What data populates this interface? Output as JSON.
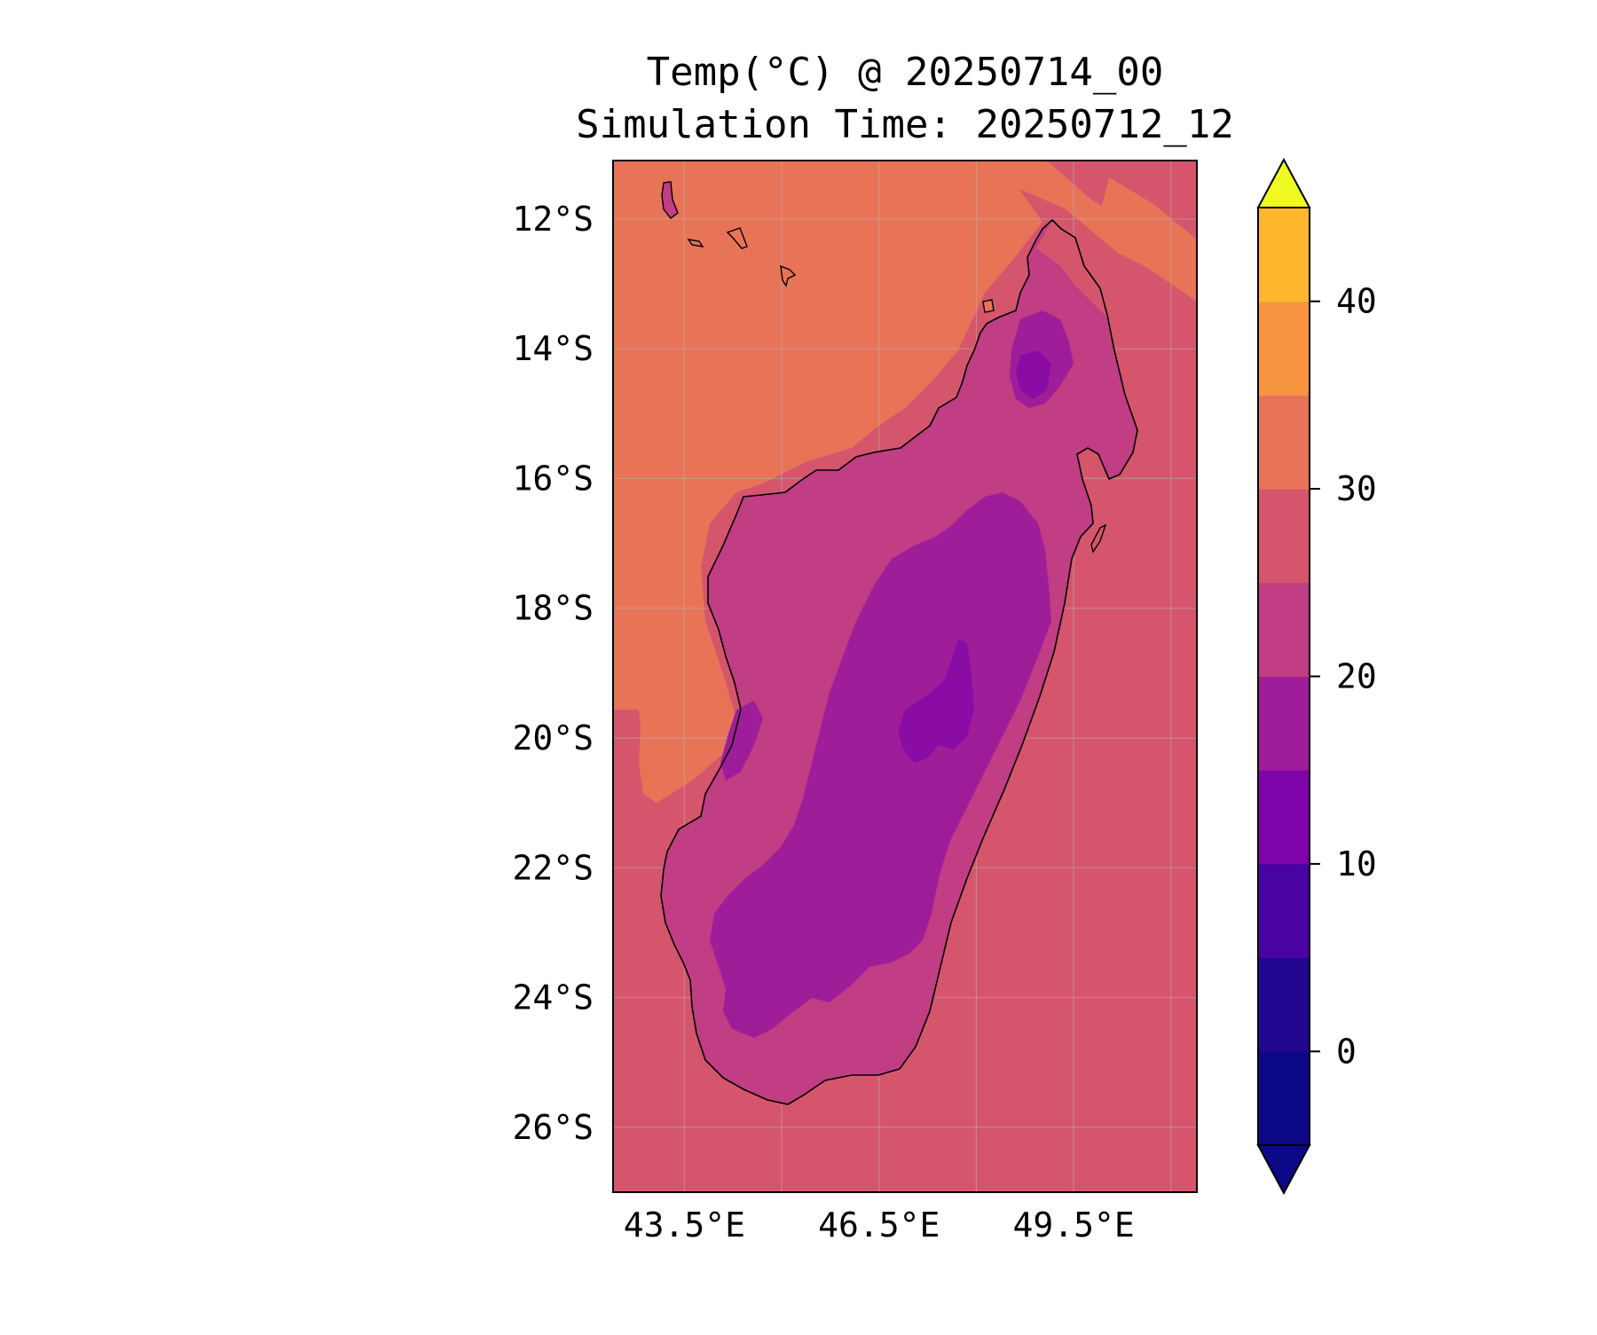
{
  "title": {
    "line1": "Temp(°C) @ 20250714_00",
    "line2": "Simulation Time: 20250712_12"
  },
  "map": {
    "region": "Madagascar",
    "lon_range": [
      42.4,
      51.4
    ],
    "lat_range": [
      -27.0,
      -11.1
    ],
    "x_ticks": [
      {
        "value": 43.5,
        "label": "43.5°E"
      },
      {
        "value": 46.5,
        "label": "46.5°E"
      },
      {
        "value": 49.5,
        "label": "49.5°E"
      }
    ],
    "y_ticks": [
      {
        "value": -12,
        "label": "12°S"
      },
      {
        "value": -14,
        "label": "14°S"
      },
      {
        "value": -16,
        "label": "16°S"
      },
      {
        "value": -18,
        "label": "18°S"
      },
      {
        "value": -20,
        "label": "20°S"
      },
      {
        "value": -22,
        "label": "22°S"
      },
      {
        "value": -24,
        "label": "24°S"
      },
      {
        "value": -26,
        "label": "26°S"
      }
    ],
    "grid": true,
    "colors": {
      "ocean_warm": "#e87458",
      "ocean_mild": "#d5566c",
      "land_low": "#c13d84",
      "land_mid": "#a01d9a",
      "land_high": "#8a0ca5",
      "coastline": "#000000"
    }
  },
  "colorbar": {
    "colormap": "plasma",
    "extend": "both",
    "levels": [
      -5,
      0,
      5,
      10,
      15,
      20,
      25,
      30,
      35,
      40,
      45
    ],
    "colors": [
      "#0d0887",
      "#220690",
      "#4903a0",
      "#7e03a8",
      "#a01d9a",
      "#c13d84",
      "#d5566c",
      "#e87458",
      "#f89540",
      "#feb72c",
      "#f1e226"
    ],
    "under_color": "#0d0887",
    "over_color": "#f0f921",
    "ticks": [
      {
        "value": 0,
        "label": "0"
      },
      {
        "value": 10,
        "label": "10"
      },
      {
        "value": 20,
        "label": "20"
      },
      {
        "value": 30,
        "label": "30"
      },
      {
        "value": 40,
        "label": "40"
      }
    ]
  }
}
